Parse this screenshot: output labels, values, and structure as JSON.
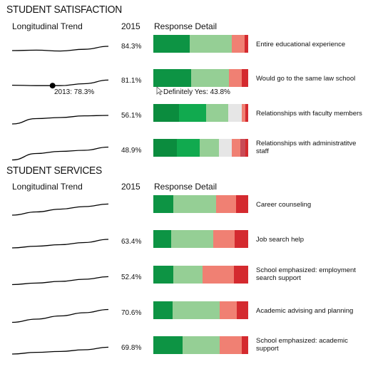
{
  "colors": {
    "definitely_yes": "#0d9444",
    "probably_yes": "#95cf95",
    "neutral": "#e6e6e6",
    "probably_no": "#f08073",
    "definitely_no": "#d42a2f"
  },
  "satisfaction": {
    "title": "STUDENT SATISFACTION",
    "col_trend": "Longitudinal Trend",
    "col_year": "2015",
    "col_detail": "Response Detail"
  },
  "services": {
    "title": "STUDENT SERVICES",
    "col_trend": "Longitudinal Trend",
    "col_year": "2015",
    "col_detail": "Response Detail"
  },
  "annotations": {
    "point_label": "2013: 78.3%",
    "tooltip": "Definitely Yes: 43.8%"
  },
  "chart_data": [
    {
      "type": "bar",
      "section": "STUDENT SATISFACTION",
      "rows": [
        {
          "label": "Entire educational experience",
          "value": "84.3%",
          "segments": [
            {
              "color": "#0d9444",
              "value": 38
            },
            {
              "color": "#95cf95",
              "value": 45
            },
            {
              "color": "#f08073",
              "value": 13
            },
            {
              "color": "#d42a2f",
              "value": 4
            }
          ],
          "trend": [
            0.4,
            0.42,
            0.38,
            0.46,
            0.6
          ]
        },
        {
          "label": "Would go to the same law school",
          "value": "81.1%",
          "segments": [
            {
              "color": "#0d9444",
              "value": 40
            },
            {
              "color": "#95cf95",
              "value": 40
            },
            {
              "color": "#f08073",
              "value": 13
            },
            {
              "color": "#d42a2f",
              "value": 7
            }
          ],
          "trend": [
            0.38,
            0.36,
            0.36,
            0.45,
            0.62
          ]
        },
        {
          "label": "Relationships with faculty members",
          "value": "56.1%",
          "segments": [
            {
              "color": "#0b8c3e",
              "value": 27
            },
            {
              "color": "#11aa4f",
              "value": 29
            },
            {
              "color": "#95cf95",
              "value": 23
            },
            {
              "color": "#e6e6e6",
              "value": 14
            },
            {
              "color": "#f08073",
              "value": 4
            },
            {
              "color": "#d42a2f",
              "value": 3
            }
          ],
          "trend": [
            0.2,
            0.45,
            0.5,
            0.58,
            0.6
          ]
        },
        {
          "label": "Relationships with administratitve staff",
          "value": "48.9%",
          "segments": [
            {
              "color": "#0b8c3e",
              "value": 25
            },
            {
              "color": "#11aa4f",
              "value": 24
            },
            {
              "color": "#95cf95",
              "value": 20
            },
            {
              "color": "#e6e6e6",
              "value": 14
            },
            {
              "color": "#f08073",
              "value": 9
            },
            {
              "color": "#c94a55",
              "value": 5
            },
            {
              "color": "#d42a2f",
              "value": 3
            }
          ],
          "trend": [
            0.15,
            0.45,
            0.55,
            0.6,
            0.75
          ]
        }
      ]
    },
    {
      "type": "bar",
      "section": "STUDENT SERVICES",
      "rows": [
        {
          "label": "Career counseling",
          "value": "",
          "segments": [
            {
              "color": "#0d9444",
              "value": 21
            },
            {
              "color": "#95cf95",
              "value": 45
            },
            {
              "color": "#f08073",
              "value": 21
            },
            {
              "color": "#d42a2f",
              "value": 13
            }
          ],
          "trend": [
            0.2,
            0.35,
            0.48,
            0.6,
            0.72
          ]
        },
        {
          "label": "Job search help",
          "value": "63.4%",
          "segments": [
            {
              "color": "#0d9444",
              "value": 19
            },
            {
              "color": "#95cf95",
              "value": 44
            },
            {
              "color": "#f08073",
              "value": 23
            },
            {
              "color": "#d42a2f",
              "value": 14
            }
          ],
          "trend": [
            0.3,
            0.38,
            0.45,
            0.55,
            0.7
          ]
        },
        {
          "label": "School emphasized: employment search support",
          "value": "52.4%",
          "segments": [
            {
              "color": "#0d9444",
              "value": 21
            },
            {
              "color": "#95cf95",
              "value": 31
            },
            {
              "color": "#f08073",
              "value": 33
            },
            {
              "color": "#d42a2f",
              "value": 15
            }
          ],
          "trend": [
            0.25,
            0.32,
            0.4,
            0.5,
            0.62
          ]
        },
        {
          "label": "Academic advising and planning",
          "value": "70.6%",
          "segments": [
            {
              "color": "#0d9444",
              "value": 20
            },
            {
              "color": "#95cf95",
              "value": 50
            },
            {
              "color": "#f08073",
              "value": 18
            },
            {
              "color": "#d42a2f",
              "value": 12
            }
          ],
          "trend": [
            0.15,
            0.3,
            0.45,
            0.6,
            0.75
          ]
        },
        {
          "label": "School emphasized: academic support",
          "value": "69.8%",
          "segments": [
            {
              "color": "#0d9444",
              "value": 31
            },
            {
              "color": "#95cf95",
              "value": 39
            },
            {
              "color": "#f08073",
              "value": 23
            },
            {
              "color": "#d42a2f",
              "value": 7
            }
          ],
          "trend": [
            0.3,
            0.38,
            0.42,
            0.5,
            0.62
          ]
        }
      ]
    }
  ]
}
